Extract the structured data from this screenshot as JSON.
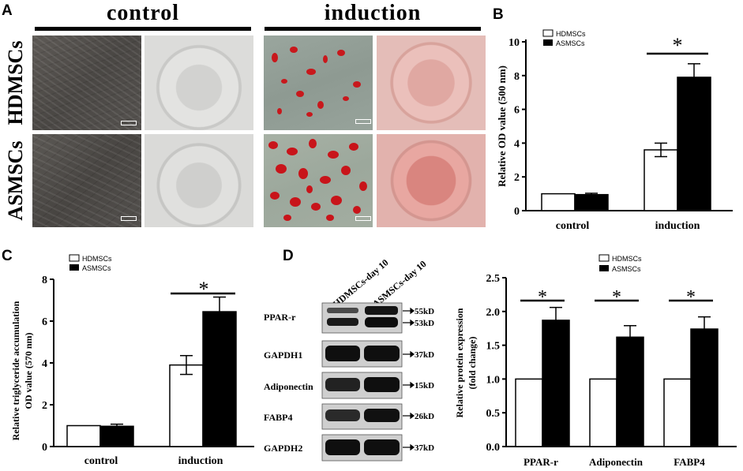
{
  "panels": {
    "A": "A",
    "B": "B",
    "C": "C",
    "D": "D"
  },
  "panelA": {
    "columns": [
      "control",
      "induction"
    ],
    "rows": [
      "HDMSCs",
      "ASMSCs"
    ]
  },
  "chartB": {
    "ylabel": "Relative OD value (500 nm)",
    "ticks": [
      "0",
      "2",
      "4",
      "6",
      "8",
      "10"
    ],
    "categories": [
      "control",
      "induction"
    ],
    "legend": [
      "HDMSCs",
      "ASMSCs"
    ],
    "star": "*"
  },
  "chartC": {
    "ylabel_line1": "Relative triglyceride accumulation",
    "ylabel_line2": "OD value (570 nm)",
    "ticks": [
      "0",
      "2",
      "4",
      "6",
      "8"
    ],
    "categories": [
      "control",
      "induction"
    ],
    "legend": [
      "HDMSCs",
      "ASMSCs"
    ],
    "star": "*"
  },
  "blot": {
    "lanes": [
      "HDMSCs-day 10",
      "ASMSCs-day 10"
    ],
    "proteins": [
      "PPAR-r",
      "GAPDH1",
      "Adiponectin",
      "FABP4",
      "GAPDH2"
    ],
    "markers": [
      "55kD",
      "53kD",
      "37kD",
      "15kD",
      "26kD",
      "37kD"
    ]
  },
  "chartD": {
    "ylabel_line1": "Relative protein expression",
    "ylabel_line2": "(fold change)",
    "ticks": [
      "0.0",
      "0.5",
      "1.0",
      "1.5",
      "2.0",
      "2.5"
    ],
    "categories": [
      "PPAR-r",
      "Adiponectin",
      "FABP4"
    ],
    "legend": [
      "HDMSCs",
      "ASMSCs"
    ],
    "star": "*"
  },
  "chart_data": [
    {
      "type": "bar",
      "panel": "B",
      "categories": [
        "control",
        "induction"
      ],
      "series": [
        {
          "name": "HDMSCs",
          "values": [
            1.0,
            3.6
          ],
          "errors": [
            0.0,
            0.4
          ]
        },
        {
          "name": "ASMSCs",
          "values": [
            0.95,
            7.9
          ],
          "errors": [
            0.08,
            0.8
          ]
        }
      ],
      "ylabel": "Relative OD value (500 nm)",
      "ylim": [
        0,
        10
      ],
      "significance": [
        "induction"
      ]
    },
    {
      "type": "bar",
      "panel": "C",
      "categories": [
        "control",
        "induction"
      ],
      "series": [
        {
          "name": "HDMSCs",
          "values": [
            1.0,
            3.9
          ],
          "errors": [
            0.0,
            0.45
          ]
        },
        {
          "name": "ASMSCs",
          "values": [
            0.97,
            6.45
          ],
          "errors": [
            0.1,
            0.7
          ]
        }
      ],
      "ylabel": "Relative triglyceride accumulation OD value (570 nm)",
      "ylim": [
        0,
        8
      ],
      "significance": [
        "induction"
      ]
    },
    {
      "type": "bar",
      "panel": "D",
      "categories": [
        "PPAR-r",
        "Adiponectin",
        "FABP4"
      ],
      "series": [
        {
          "name": "HDMSCs",
          "values": [
            1.0,
            1.0,
            1.0
          ],
          "errors": [
            0,
            0,
            0
          ]
        },
        {
          "name": "ASMSCs",
          "values": [
            1.87,
            1.62,
            1.74
          ],
          "errors": [
            0.19,
            0.17,
            0.18
          ]
        }
      ],
      "ylabel": "Relative protein expression (fold change)",
      "ylim": [
        0,
        2.5
      ],
      "significance": [
        "PPAR-r",
        "Adiponectin",
        "FABP4"
      ]
    }
  ]
}
